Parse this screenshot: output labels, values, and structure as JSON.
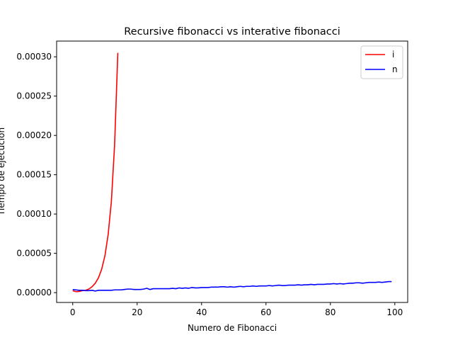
{
  "chart_data": {
    "type": "line",
    "title": "Recursive fibonacci vs interative fibonacci",
    "xlabel": "Numero de Fibonacci",
    "ylabel": "Tiempo de ejecución",
    "xlim": [
      -5,
      104
    ],
    "ylim": [
      -1.25e-05,
      0.00032
    ],
    "xticks": [
      0,
      20,
      40,
      60,
      80,
      100
    ],
    "yticks": [
      0,
      5e-05,
      0.0001,
      0.00015,
      0.0002,
      0.00025,
      0.0003
    ],
    "ytick_labels": [
      "0.00000",
      "0.00005",
      "0.00010",
      "0.00015",
      "0.00020",
      "0.00025",
      "0.00030"
    ],
    "grid": false,
    "legend_position": "top-right",
    "series": [
      {
        "name": "i",
        "color": "#ff0000",
        "x": [
          0,
          1,
          2,
          3,
          4,
          5,
          6,
          7,
          8,
          9,
          10,
          11,
          12,
          13,
          14
        ],
        "y": [
          2.5e-06,
          1.2e-06,
          1.5e-06,
          2.5e-06,
          3e-06,
          4.5e-06,
          7.5e-06,
          1.2e-05,
          1.9e-05,
          3e-05,
          4.7e-05,
          7.4e-05,
          0.000116,
          0.000188,
          0.000305
        ]
      },
      {
        "name": "n",
        "color": "#0000ff",
        "x": [
          0,
          1,
          2,
          3,
          4,
          5,
          6,
          7,
          8,
          9,
          10,
          11,
          12,
          13,
          14,
          15,
          16,
          17,
          18,
          19,
          20,
          21,
          22,
          23,
          24,
          25,
          26,
          27,
          28,
          29,
          30,
          31,
          32,
          33,
          34,
          35,
          36,
          37,
          38,
          39,
          40,
          41,
          42,
          43,
          44,
          45,
          46,
          47,
          48,
          49,
          50,
          51,
          52,
          53,
          54,
          55,
          56,
          57,
          58,
          59,
          60,
          61,
          62,
          63,
          64,
          65,
          66,
          67,
          68,
          69,
          70,
          71,
          72,
          73,
          74,
          75,
          76,
          77,
          78,
          79,
          80,
          81,
          82,
          83,
          84,
          85,
          86,
          87,
          88,
          89,
          90,
          91,
          92,
          93,
          94,
          95,
          96,
          97,
          98,
          99
        ],
        "y": [
          4e-06,
          3.5e-06,
          3e-06,
          3e-06,
          2.5e-06,
          2.5e-06,
          3e-06,
          2e-06,
          3e-06,
          3e-06,
          3e-06,
          3e-06,
          3e-06,
          3.5e-06,
          3.5e-06,
          3.5e-06,
          4e-06,
          4.5e-06,
          4.5e-06,
          4e-06,
          4e-06,
          4e-06,
          4.5e-06,
          5.5e-06,
          4e-06,
          5e-06,
          5e-06,
          5e-06,
          5e-06,
          5e-06,
          5e-06,
          5.5e-06,
          5e-06,
          6e-06,
          5.5e-06,
          6e-06,
          5.5e-06,
          6.5e-06,
          6e-06,
          6e-06,
          6.5e-06,
          6.5e-06,
          6.5e-06,
          7e-06,
          7e-06,
          7e-06,
          7.5e-06,
          7.5e-06,
          7e-06,
          7.5e-06,
          7e-06,
          7.5e-06,
          8e-06,
          7.5e-06,
          8e-06,
          8e-06,
          8.5e-06,
          8e-06,
          8.5e-06,
          8.5e-06,
          8.5e-06,
          9e-06,
          8.5e-06,
          9e-06,
          9.5e-06,
          9e-06,
          9e-06,
          9.5e-06,
          9.5e-06,
          9.5e-06,
          1e-05,
          9.5e-06,
          1e-05,
          1e-05,
          1.05e-05,
          1e-05,
          1.05e-05,
          1.05e-05,
          1.05e-05,
          1.1e-05,
          1.1e-05,
          1.15e-05,
          1.1e-05,
          1.15e-05,
          1.1e-05,
          1.15e-05,
          1.2e-05,
          1.2e-05,
          1.25e-05,
          1.25e-05,
          1.2e-05,
          1.25e-05,
          1.3e-05,
          1.3e-05,
          1.3e-05,
          1.35e-05,
          1.3e-05,
          1.35e-05,
          1.4e-05,
          1.4e-05
        ]
      }
    ]
  }
}
